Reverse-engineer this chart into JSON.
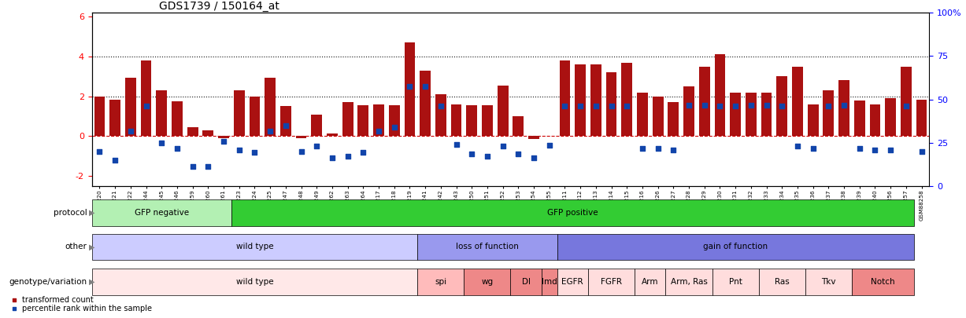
{
  "title": "GDS1739 / 150164_at",
  "samples": [
    "GSM88220",
    "GSM88221",
    "GSM88222",
    "GSM88244",
    "GSM88245",
    "GSM88246",
    "GSM88259",
    "GSM88260",
    "GSM88261",
    "GSM88223",
    "GSM88224",
    "GSM88225",
    "GSM88247",
    "GSM88248",
    "GSM88249",
    "GSM88262",
    "GSM88263",
    "GSM88264",
    "GSM88217",
    "GSM88218",
    "GSM88219",
    "GSM88241",
    "GSM88242",
    "GSM88243",
    "GSM88250",
    "GSM88251",
    "GSM88252",
    "GSM88253",
    "GSM88254",
    "GSM88255",
    "GSM88211",
    "GSM88212",
    "GSM88213",
    "GSM88214",
    "GSM88215",
    "GSM88216",
    "GSM88226",
    "GSM88227",
    "GSM88228",
    "GSM88229",
    "GSM88230",
    "GSM88231",
    "GSM88232",
    "GSM88233",
    "GSM88234",
    "GSM88235",
    "GSM88236",
    "GSM88237",
    "GSM88238",
    "GSM88239",
    "GSM88240",
    "GSM88256",
    "GSM88257",
    "GSM88258"
  ],
  "bar_values": [
    2.0,
    1.85,
    2.95,
    3.8,
    2.3,
    1.75,
    0.45,
    0.3,
    -0.1,
    2.3,
    2.0,
    2.95,
    1.5,
    -0.1,
    1.1,
    0.15,
    1.7,
    1.55,
    1.6,
    1.55,
    4.7,
    3.3,
    2.1,
    1.6,
    1.55,
    1.55,
    2.55,
    1.0,
    -0.15,
    0.0,
    3.8,
    3.6,
    3.6,
    3.2,
    3.7,
    2.2,
    2.0,
    1.7,
    2.5,
    3.5,
    4.1,
    2.2,
    2.2,
    2.2,
    3.0,
    3.5,
    1.6,
    2.3,
    2.8,
    1.8,
    1.6,
    1.9,
    3.5,
    1.85
  ],
  "percentile_values": [
    -0.75,
    -1.2,
    0.25,
    1.5,
    -0.35,
    -0.6,
    -1.5,
    -1.5,
    -0.25,
    -0.7,
    -0.8,
    0.25,
    0.55,
    -0.75,
    -0.5,
    -1.1,
    -1.0,
    -0.8,
    0.25,
    0.45,
    2.5,
    2.5,
    1.5,
    -0.4,
    -0.9,
    -1.0,
    -0.5,
    -0.9,
    -1.1,
    -0.45,
    1.5,
    1.5,
    1.5,
    1.5,
    1.5,
    -0.6,
    -0.6,
    -0.7,
    1.55,
    1.55,
    1.5,
    1.5,
    1.55,
    1.55,
    1.5,
    -0.5,
    -0.6,
    1.5,
    1.55,
    -0.6,
    -0.7,
    -0.7,
    1.5,
    -0.75
  ],
  "protocol_groups": [
    {
      "label": "GFP negative",
      "start": 0,
      "end": 8,
      "color": "#b3f0b3"
    },
    {
      "label": "GFP positive",
      "start": 9,
      "end": 52,
      "color": "#33cc33"
    }
  ],
  "other_groups": [
    {
      "label": "wild type",
      "start": 0,
      "end": 20,
      "color": "#ccccff"
    },
    {
      "label": "loss of function",
      "start": 21,
      "end": 29,
      "color": "#9999ee"
    },
    {
      "label": "gain of function",
      "start": 30,
      "end": 52,
      "color": "#7777dd"
    }
  ],
  "genotype_groups": [
    {
      "label": "wild type",
      "start": 0,
      "end": 20,
      "color": "#ffe8e8"
    },
    {
      "label": "spi",
      "start": 21,
      "end": 23,
      "color": "#ffbbbb"
    },
    {
      "label": "wg",
      "start": 24,
      "end": 26,
      "color": "#ee8888"
    },
    {
      "label": "Dl",
      "start": 27,
      "end": 28,
      "color": "#ee8888"
    },
    {
      "label": "Imd",
      "start": 29,
      "end": 29,
      "color": "#ee8888"
    },
    {
      "label": "EGFR",
      "start": 30,
      "end": 31,
      "color": "#ffdddd"
    },
    {
      "label": "FGFR",
      "start": 32,
      "end": 34,
      "color": "#ffdddd"
    },
    {
      "label": "Arm",
      "start": 35,
      "end": 36,
      "color": "#ffdddd"
    },
    {
      "label": "Arm, Ras",
      "start": 37,
      "end": 39,
      "color": "#ffdddd"
    },
    {
      "label": "Pnt",
      "start": 40,
      "end": 42,
      "color": "#ffdddd"
    },
    {
      "label": "Ras",
      "start": 43,
      "end": 45,
      "color": "#ffdddd"
    },
    {
      "label": "Tkv",
      "start": 46,
      "end": 48,
      "color": "#ffdddd"
    },
    {
      "label": "Notch",
      "start": 49,
      "end": 52,
      "color": "#ee8888"
    }
  ],
  "row_labels": [
    "protocol",
    "other",
    "genotype/variation"
  ],
  "bar_color": "#aa1111",
  "dot_color": "#1144aa",
  "ylim_left": [
    -2.5,
    6.2
  ],
  "left_yticks": [
    -2,
    0,
    2,
    4,
    6
  ],
  "left_yticklabels": [
    "-2",
    "0",
    "2",
    "4",
    "6"
  ],
  "right_yticks": [
    0,
    25,
    50,
    75,
    100
  ],
  "right_yticklabels": [
    "0",
    "25",
    "50",
    "75",
    "100%"
  ],
  "hline_values": [
    0,
    2,
    4
  ],
  "hline_styles": [
    "--",
    ":",
    ":"
  ],
  "hline_colors": [
    "#cc0000",
    "#111111",
    "#111111"
  ],
  "legend_labels": [
    "transformed count",
    "percentile rank within the sample"
  ],
  "legend_colors": [
    "#aa1111",
    "#1144aa"
  ]
}
